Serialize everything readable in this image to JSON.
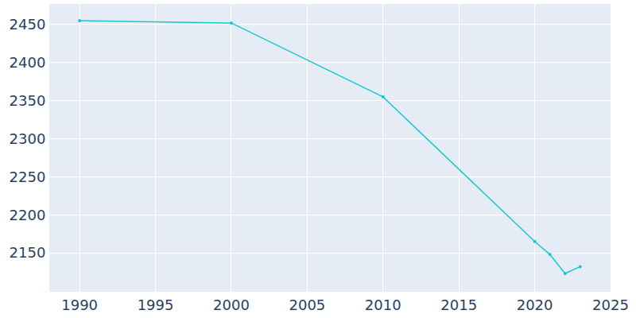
{
  "chart_data": {
    "type": "line",
    "x": [
      1990,
      2000,
      2010,
      2020,
      2021,
      2022,
      2023
    ],
    "values": [
      2455,
      2452,
      2355,
      2165,
      2148,
      2123,
      2132
    ],
    "color": "#17c8d0",
    "marker": "circle",
    "line_style": "solid",
    "xlim": [
      1988,
      2025
    ],
    "xticks": [
      1990,
      1995,
      2000,
      2005,
      2010,
      2015,
      2020,
      2025
    ],
    "ylim": [
      2099,
      2477
    ],
    "yticks": [
      2150,
      2200,
      2250,
      2300,
      2350,
      2400,
      2450
    ],
    "grid": true
  }
}
